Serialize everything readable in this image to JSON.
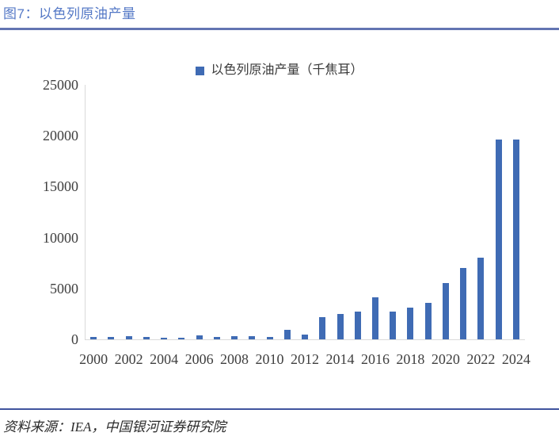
{
  "header": {
    "title": "图7：以色列原油产量"
  },
  "legend": {
    "label": "以色列原油产量（千焦耳）"
  },
  "footer": {
    "source": "资料来源：IEA，中国银河证券研究院"
  },
  "colors": {
    "bar": "#3F6BB4",
    "title_text": "#5478C6",
    "top_rule": "#6375B2",
    "bottom_rule": "#40549E",
    "axis_line": "#D9D9D9",
    "tick_text": "#3F3F3F"
  },
  "chart_data": {
    "type": "bar",
    "title": "以色列原油产量",
    "unit": "千焦耳",
    "legend_entries": [
      "以色列原油产量（千焦耳）"
    ],
    "legend_position": "top-center",
    "grid": false,
    "ylim": [
      0,
      25000
    ],
    "y_ticks": [
      0,
      5000,
      10000,
      15000,
      20000,
      25000
    ],
    "x_tick_labels": [
      "2000",
      "2002",
      "2004",
      "2006",
      "2008",
      "2010",
      "2012",
      "2014",
      "2016",
      "2018",
      "2020",
      "2022",
      "2024"
    ],
    "categories": [
      "2000",
      "2001",
      "2002",
      "2003",
      "2004",
      "2005",
      "2006",
      "2007",
      "2008",
      "2009",
      "2010",
      "2011",
      "2012",
      "2013",
      "2014",
      "2015",
      "2016",
      "2017",
      "2018",
      "2019",
      "2020",
      "2021",
      "2022",
      "2023",
      "2024"
    ],
    "values": [
      250,
      250,
      350,
      200,
      150,
      150,
      400,
      250,
      350,
      300,
      250,
      900,
      500,
      2200,
      2500,
      2700,
      4100,
      2700,
      3100,
      3600,
      5500,
      7000,
      8000,
      19600,
      19600
    ]
  }
}
